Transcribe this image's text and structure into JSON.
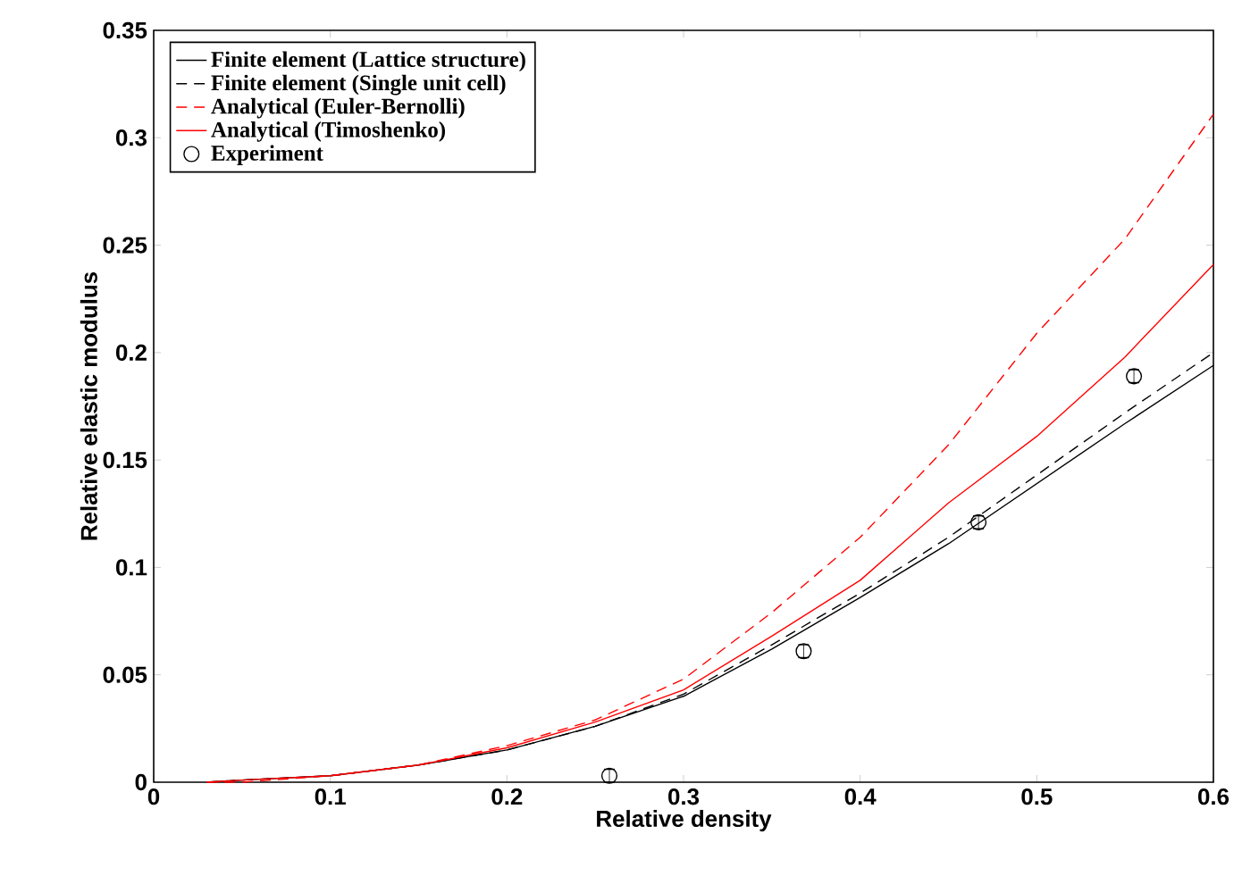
{
  "chart_data": {
    "type": "line",
    "xlabel": "Relative density",
    "ylabel": "Relative elastic modulus",
    "x": [
      0.03,
      0.05,
      0.1,
      0.15,
      0.2,
      0.25,
      0.3,
      0.35,
      0.4,
      0.45,
      0.5,
      0.55,
      0.6
    ],
    "series": [
      {
        "name": "Finite element (Lattice structure)",
        "line_style": "solid",
        "color": "#000000",
        "values": [
          0.0,
          0.001,
          0.003,
          0.008,
          0.015,
          0.026,
          0.04,
          0.062,
          0.086,
          0.111,
          0.139,
          0.167,
          0.194
        ]
      },
      {
        "name": "Finite element (Single unit cell)",
        "line_style": "dashed",
        "color": "#000000",
        "values": [
          0.0,
          0.001,
          0.003,
          0.008,
          0.015,
          0.026,
          0.041,
          0.064,
          0.088,
          0.114,
          0.143,
          0.172,
          0.2
        ]
      },
      {
        "name": "Analytical (Euler-Bernolli)",
        "line_style": "dashed",
        "color": "#ff0000",
        "values": [
          0.0,
          0.0,
          0.003,
          0.008,
          0.017,
          0.029,
          0.048,
          0.079,
          0.114,
          0.157,
          0.209,
          0.253,
          0.311
        ]
      },
      {
        "name": "Analytical (Timoshenko)",
        "line_style": "solid",
        "color": "#ff0000",
        "values": [
          0.0,
          0.001,
          0.003,
          0.008,
          0.016,
          0.028,
          0.043,
          0.068,
          0.094,
          0.13,
          0.161,
          0.198,
          0.241
        ]
      },
      {
        "name": "Experiment",
        "type": "scatter",
        "marker": "circle",
        "color": "#000000",
        "x": [
          0.258,
          0.368,
          0.467,
          0.555
        ],
        "values": [
          0.003,
          0.061,
          0.121,
          0.189
        ],
        "errors": [
          0.003,
          0.003,
          0.003,
          0.003
        ]
      }
    ],
    "xlim": [
      0,
      0.6
    ],
    "ylim": [
      0,
      0.35
    ],
    "xticks": [
      0,
      0.1,
      0.2,
      0.3,
      0.4,
      0.5,
      0.6
    ],
    "yticks": [
      0,
      0.05,
      0.1,
      0.15,
      0.2,
      0.25,
      0.3,
      0.35
    ],
    "legend": "top left"
  }
}
